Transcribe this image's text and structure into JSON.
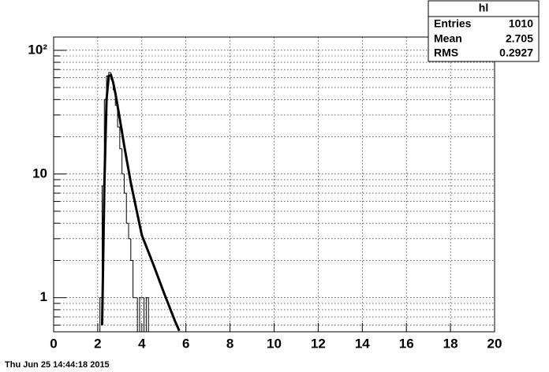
{
  "chart_data": {
    "type": "histogram",
    "bins": [
      2.1,
      2.2,
      2.3,
      2.4,
      2.5,
      2.6,
      2.7,
      2.8,
      2.9,
      3.0,
      3.1,
      3.2,
      3.3,
      3.4,
      3.5,
      3.6,
      3.7,
      3.8,
      3.9,
      4.0,
      4.1,
      4.2,
      4.3
    ],
    "counts": [
      1,
      8,
      40,
      62,
      66,
      58,
      48,
      36,
      24,
      16,
      10,
      7,
      4,
      3,
      2,
      1,
      1,
      0,
      1,
      1,
      0,
      1
    ],
    "fit": {
      "x": [
        2.2,
        2.3,
        2.4,
        2.5,
        2.6,
        2.7,
        2.8,
        3.0,
        3.2,
        3.5,
        4.0,
        4.5,
        5.0,
        5.5,
        5.7
      ],
      "y": [
        0.6,
        8,
        40,
        62,
        63,
        55,
        45,
        28,
        17,
        8.5,
        3.2,
        1.9,
        1.1,
        0.65,
        0.54
      ]
    },
    "xlim": [
      0,
      20
    ],
    "xticks": [
      0,
      2,
      4,
      6,
      8,
      10,
      12,
      14,
      16,
      18,
      20
    ],
    "ylim": [
      0.53,
      128
    ],
    "log_y": true,
    "yticks": [
      1,
      10,
      {
        "value": 100,
        "label": "10²"
      }
    ],
    "yminorticks": [
      0.6,
      0.7,
      0.8,
      0.9,
      2,
      3,
      4,
      5,
      6,
      7,
      8,
      9,
      20,
      30,
      40,
      50,
      60,
      70,
      80,
      90
    ],
    "grid": true,
    "color": "#000000",
    "stats": {
      "title": "hl",
      "rows": [
        [
          "Entries",
          1010
        ],
        [
          "Mean",
          2.705
        ],
        [
          "RMS",
          0.2927
        ]
      ]
    },
    "timestamp": "Thu Jun 25 14:44:18 2015"
  }
}
